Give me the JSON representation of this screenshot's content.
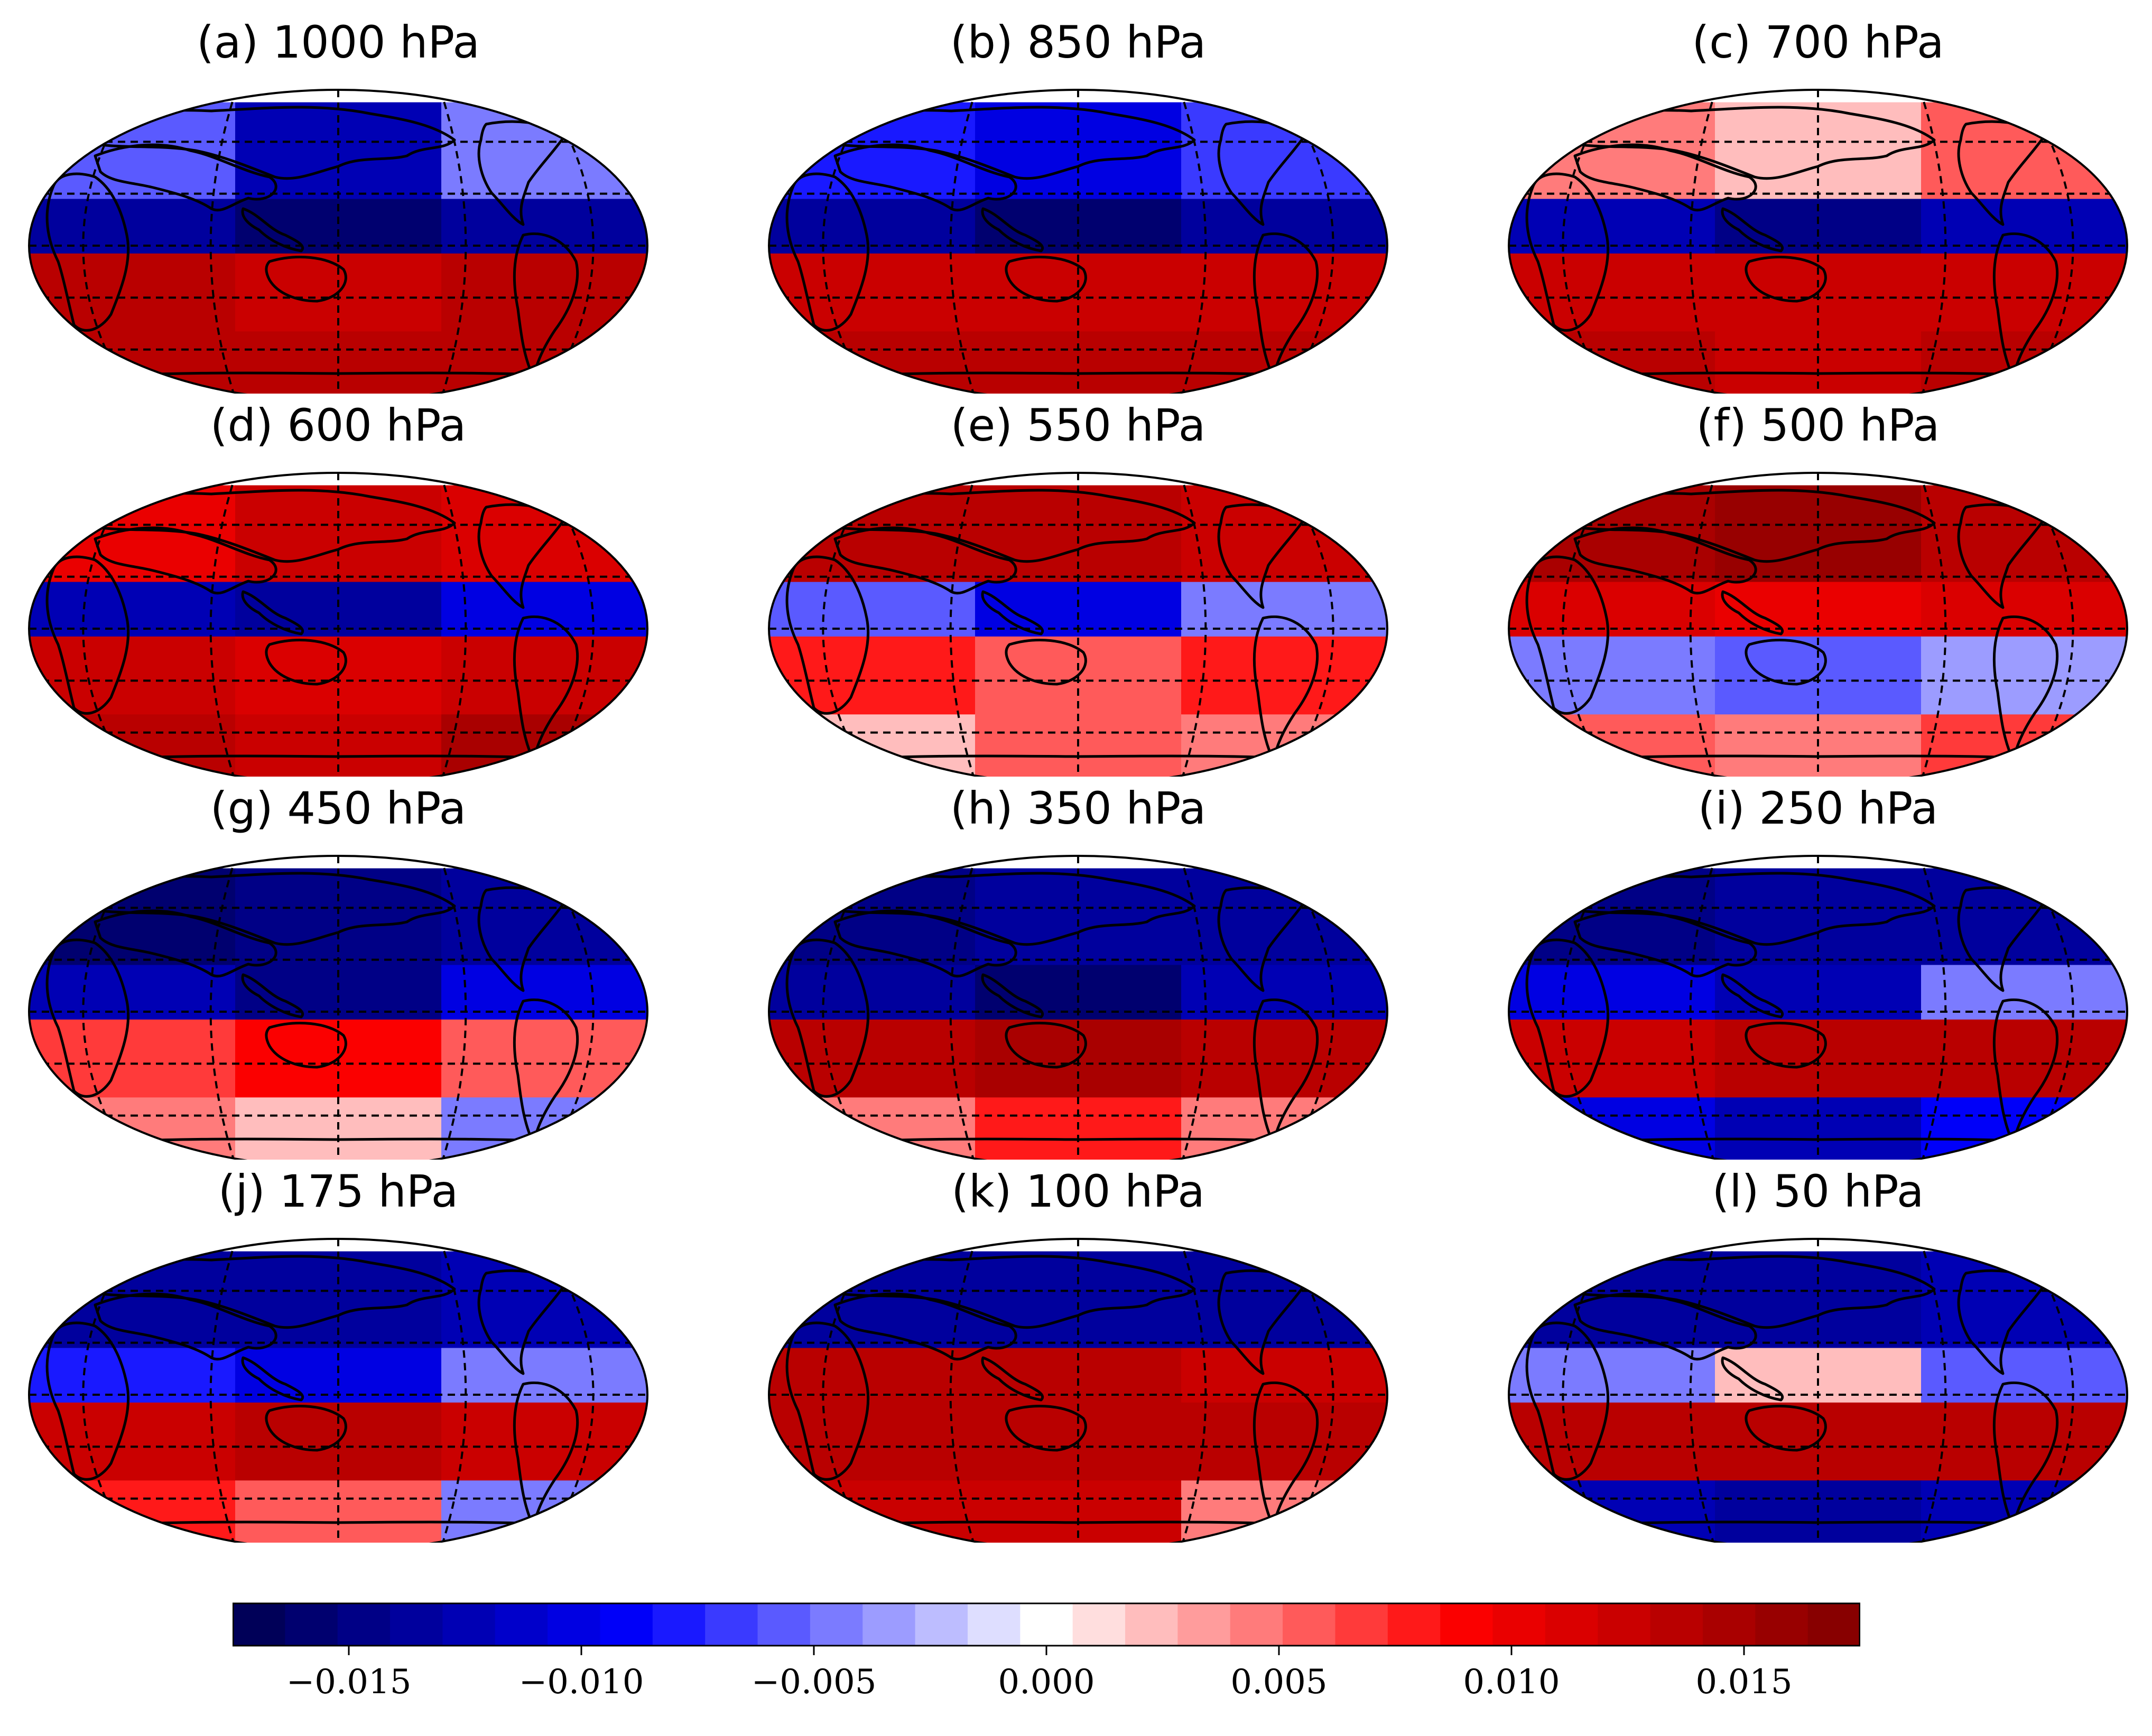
{
  "panels": [
    {
      "title": "(a) 1000 hPa",
      "pattern": [
        [
          -0.006,
          -0.012,
          -0.004
        ],
        [
          -0.013,
          -0.016,
          -0.014
        ],
        [
          0.013,
          0.012,
          0.013
        ],
        [
          0.014,
          0.013,
          0.014
        ]
      ]
    },
    {
      "title": "(b) 850 hPa",
      "pattern": [
        [
          -0.008,
          -0.01,
          -0.007
        ],
        [
          -0.014,
          -0.016,
          -0.013
        ],
        [
          0.012,
          0.012,
          0.012
        ],
        [
          0.014,
          0.013,
          0.014
        ]
      ]
    },
    {
      "title": "(c) 700 hPa",
      "pattern": [
        [
          0.004,
          0.002,
          0.006
        ],
        [
          -0.012,
          -0.015,
          -0.012
        ],
        [
          0.012,
          0.012,
          0.012
        ],
        [
          0.013,
          0.012,
          0.013
        ]
      ]
    },
    {
      "title": "(d) 600 hPa",
      "pattern": [
        [
          0.01,
          0.012,
          0.011
        ],
        [
          -0.012,
          -0.014,
          -0.01
        ],
        [
          0.012,
          0.011,
          0.012
        ],
        [
          0.013,
          0.012,
          0.015
        ]
      ]
    },
    {
      "title": "(e) 550 hPa",
      "pattern": [
        [
          0.013,
          0.014,
          0.012
        ],
        [
          -0.006,
          -0.01,
          -0.004
        ],
        [
          0.008,
          0.006,
          0.008
        ],
        [
          0.002,
          0.006,
          0.004
        ]
      ]
    },
    {
      "title": "(f) 500 hPa",
      "pattern": [
        [
          0.015,
          0.016,
          0.014
        ],
        [
          0.011,
          0.01,
          0.011
        ],
        [
          -0.004,
          -0.006,
          -0.003
        ],
        [
          0.006,
          0.004,
          0.007
        ]
      ]
    },
    {
      "title": "(g) 450 hPa",
      "pattern": [
        [
          -0.016,
          -0.015,
          -0.014
        ],
        [
          -0.012,
          -0.015,
          -0.01
        ],
        [
          0.007,
          0.009,
          0.006
        ],
        [
          0.005,
          0.002,
          -0.004
        ]
      ]
    },
    {
      "title": "(h) 350 hPa",
      "pattern": [
        [
          -0.015,
          -0.014,
          -0.014
        ],
        [
          -0.013,
          -0.016,
          -0.012
        ],
        [
          0.013,
          0.015,
          0.014
        ],
        [
          0.005,
          0.008,
          0.004
        ]
      ]
    },
    {
      "title": "(i) 250 hPa",
      "pattern": [
        [
          -0.015,
          -0.014,
          -0.013
        ],
        [
          -0.01,
          -0.012,
          -0.004
        ],
        [
          0.012,
          0.013,
          0.014
        ],
        [
          -0.01,
          -0.012,
          -0.009
        ]
      ]
    },
    {
      "title": "(j) 175 hPa",
      "pattern": [
        [
          -0.013,
          -0.014,
          -0.012
        ],
        [
          -0.008,
          -0.01,
          -0.004
        ],
        [
          0.012,
          0.013,
          0.012
        ],
        [
          0.008,
          0.006,
          -0.005
        ]
      ]
    },
    {
      "title": "(k) 100 hPa",
      "pattern": [
        [
          -0.014,
          -0.014,
          -0.013
        ],
        [
          0.013,
          0.014,
          0.012
        ],
        [
          0.013,
          0.014,
          0.013
        ],
        [
          0.012,
          0.012,
          0.005
        ]
      ]
    },
    {
      "title": "(l) 50 hPa",
      "pattern": [
        [
          -0.013,
          -0.013,
          -0.012
        ],
        [
          -0.004,
          0.002,
          -0.006
        ],
        [
          0.013,
          0.013,
          0.013
        ],
        [
          -0.012,
          -0.013,
          -0.012
        ]
      ]
    }
  ],
  "colorbar": {
    "vmin": -0.0175,
    "vmax": 0.0175,
    "n_bins": 31,
    "ticks": [
      -0.015,
      -0.01,
      -0.005,
      0.0,
      0.005,
      0.01,
      0.015
    ],
    "tick_labels": [
      "−0.015",
      "−0.010",
      "−0.005",
      "0.000",
      "0.005",
      "0.010",
      "0.015"
    ],
    "cmap": "seismic"
  },
  "colors": {
    "coastline": "#000000",
    "graticule": "#000000"
  }
}
